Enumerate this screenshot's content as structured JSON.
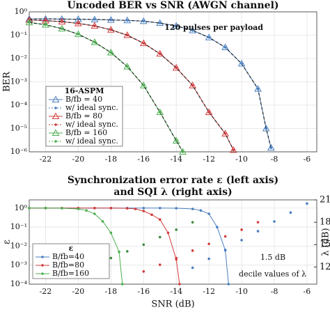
{
  "chart_data": [
    {
      "type": "line",
      "title": "Uncoded BER vs SNR (AWGN channel)",
      "ylabel": "BER",
      "log_scale": "y",
      "grid": true,
      "xlim": [
        -23,
        -5.4
      ],
      "xticks": [
        -22,
        -20,
        -18,
        -16,
        -14,
        -12,
        -10,
        -8,
        -6
      ],
      "ylim": [
        1e-06,
        1
      ],
      "yticks": [
        {
          "value": 1e-06,
          "label": "10⁻⁶"
        },
        {
          "value": 1e-05,
          "label": "10⁻⁵"
        },
        {
          "value": 0.0001,
          "label": "10⁻⁴"
        },
        {
          "value": 0.001,
          "label": "10⁻³"
        },
        {
          "value": 0.01,
          "label": "10⁻²"
        },
        {
          "value": 0.1,
          "label": "10⁻¹"
        },
        {
          "value": 1,
          "label": "10⁰"
        }
      ],
      "annotations": [
        "120 pulses per payload"
      ],
      "legend_title": "16-ASPM",
      "legend": "lower left",
      "series": [
        {
          "name": "B/fb = 40",
          "color": "#4a7fc0",
          "marker": "triangle",
          "x": [
            -23,
            -22,
            -21,
            -20,
            -19,
            -18,
            -17,
            -16,
            -15,
            -14,
            -13,
            -12,
            -11,
            -10,
            -9,
            -8.5,
            -8.2
          ],
          "values": [
            0.5,
            0.5,
            0.49,
            0.48,
            0.47,
            0.45,
            0.43,
            0.4,
            0.33,
            0.25,
            0.16,
            0.08,
            0.03,
            0.006,
            0.0005,
            1e-05,
            1.5e-06
          ]
        },
        {
          "name": "w/ ideal sync.",
          "color": "#4a7fc0",
          "marker": "dot",
          "dashed": true,
          "x": [
            -23,
            -22,
            -21,
            -20,
            -19,
            -18,
            -17,
            -16,
            -15,
            -14,
            -13,
            -12,
            -11,
            -10,
            -9,
            -8.5,
            -8.2
          ],
          "values": [
            0.5,
            0.5,
            0.49,
            0.48,
            0.47,
            0.45,
            0.43,
            0.4,
            0.33,
            0.25,
            0.16,
            0.08,
            0.03,
            0.006,
            0.0005,
            1e-05,
            1.5e-06
          ]
        },
        {
          "name": "B/fb = 80",
          "color": "#d23c3c",
          "marker": "triangle",
          "x": [
            -23,
            -22,
            -21,
            -20,
            -19,
            -18,
            -17,
            -16,
            -15,
            -14,
            -13,
            -12,
            -11,
            -10.5
          ],
          "values": [
            0.45,
            0.42,
            0.38,
            0.32,
            0.25,
            0.17,
            0.1,
            0.045,
            0.016,
            0.004,
            0.0007,
            5e-05,
            6e-06,
            1.2e-06
          ]
        },
        {
          "name": "w/ ideal sync.",
          "color": "#d23c3c",
          "marker": "dot",
          "dashed": true,
          "x": [
            -23,
            -22,
            -21,
            -20,
            -19,
            -18,
            -17,
            -16,
            -15,
            -14,
            -13,
            -12,
            -11,
            -10.5
          ],
          "values": [
            0.45,
            0.42,
            0.38,
            0.32,
            0.25,
            0.17,
            0.1,
            0.045,
            0.016,
            0.004,
            0.0007,
            5e-05,
            6e-06,
            1.2e-06
          ]
        },
        {
          "name": "B/fb = 160",
          "color": "#4caf50",
          "marker": "triangle",
          "x": [
            -23,
            -22,
            -21,
            -20,
            -19,
            -18,
            -17,
            -16,
            -15,
            -14,
            -13.6
          ],
          "values": [
            0.35,
            0.28,
            0.19,
            0.11,
            0.05,
            0.018,
            0.0045,
            0.0007,
            5e-05,
            3e-06,
            1e-06
          ]
        },
        {
          "name": "w/ ideal sync.",
          "color": "#4caf50",
          "marker": "dot",
          "dashed": true,
          "x": [
            -23,
            -22,
            -21,
            -20,
            -19,
            -18,
            -17,
            -16,
            -15,
            -14,
            -13.6
          ],
          "values": [
            0.35,
            0.28,
            0.19,
            0.11,
            0.05,
            0.018,
            0.0045,
            0.0007,
            5e-05,
            3e-06,
            1e-06
          ]
        }
      ]
    },
    {
      "type": "line",
      "title": "Synchronization error rate ε (left axis)",
      "subtitle": "and SQI λ (right axis)",
      "xlabel": "SNR (dB)",
      "ylabel": "ε",
      "y2label": "λ (dB)",
      "log_scale": "y",
      "grid": true,
      "xlim": [
        -23,
        -5.4
      ],
      "xticks": [
        -22,
        -20,
        -18,
        -16,
        -14,
        -12,
        -10,
        -8,
        -6
      ],
      "ylim": [
        0.0001,
        2.7
      ],
      "yticks": [
        {
          "value": 0.0001,
          "label": "10⁻⁴"
        },
        {
          "value": 0.001,
          "label": "10⁻³"
        },
        {
          "value": 0.01,
          "label": "10⁻²"
        },
        {
          "value": 0.1,
          "label": "10⁻¹"
        },
        {
          "value": 1,
          "label": "10⁰"
        }
      ],
      "y2lim": [
        9.7,
        21
      ],
      "y2ticks": [
        12,
        15,
        18,
        21
      ],
      "y2color": "#2a2ab8",
      "annotations": [
        "1.5 dB",
        "decile values of λ"
      ],
      "legend_title": "ε",
      "legend": "lower left",
      "series": [
        {
          "name": "B/fb=40",
          "color": "#4a7fc0",
          "marker": "dot",
          "x": [
            -23,
            -22,
            -21,
            -20,
            -19,
            -18,
            -17,
            -16,
            -15,
            -14,
            -13,
            -12.5,
            -12,
            -11.5,
            -11,
            -10.8
          ],
          "values": [
            1,
            1,
            1,
            1,
            1,
            1,
            1,
            1,
            1,
            0.98,
            0.9,
            0.75,
            0.5,
            0.1,
            0.006,
            0.0001
          ]
        },
        {
          "name": "B/fb=80",
          "color": "#d23c3c",
          "marker": "dot",
          "x": [
            -23,
            -22,
            -21,
            -20,
            -19,
            -18,
            -17,
            -16.5,
            -16,
            -15.5,
            -15,
            -14.5,
            -14,
            -13.8
          ],
          "values": [
            1,
            1,
            1,
            1,
            1,
            1,
            0.97,
            0.9,
            0.7,
            0.45,
            0.25,
            0.05,
            0.002,
            0.0001
          ]
        },
        {
          "name": "B/fb=160",
          "color": "#4caf50",
          "marker": "dot",
          "x": [
            -23,
            -22,
            -21,
            -20,
            -19.5,
            -19,
            -18.5,
            -18,
            -17.5,
            -17.3
          ],
          "values": [
            1,
            1,
            0.98,
            0.9,
            0.75,
            0.5,
            0.2,
            0.05,
            0.005,
            0.0001
          ]
        },
        {
          "color": "#4a7fc0",
          "marker": "dot",
          "axis": "y2",
          "nolines": true,
          "x": [
            -13,
            -12,
            -11,
            -10,
            -9,
            -8,
            -7,
            -6
          ],
          "values": [
            11.9,
            13.1,
            14.3,
            15.6,
            16.8,
            18.1,
            19.3,
            20.5
          ]
        },
        {
          "color": "#d23c3c",
          "marker": "dot",
          "axis": "y2",
          "nolines": true,
          "x": [
            -16,
            -15,
            -14,
            -13,
            -12,
            -11,
            -10,
            -9
          ],
          "values": [
            11.4,
            12.3,
            13.2,
            14.2,
            15.1,
            16.1,
            17.0,
            18.0
          ]
        },
        {
          "color": "#3a8a3a",
          "marker": "dot",
          "axis": "y2",
          "nolines": true,
          "x": [
            -19,
            -18,
            -17,
            -16,
            -15,
            -14,
            -13
          ],
          "values": [
            12.2,
            13.2,
            14.1,
            15.0,
            16.0,
            17.0,
            18.0
          ]
        }
      ]
    }
  ]
}
